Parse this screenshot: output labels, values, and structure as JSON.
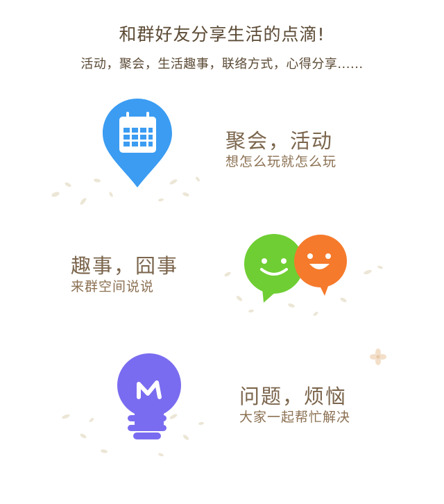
{
  "header": {
    "title": "和群好友分享生活的点滴!",
    "subtitle": "活动，聚会，生活趣事，联络方式，心得分享......"
  },
  "features": [
    {
      "title": "聚会，活动",
      "desc": "想怎么玩就怎么玩",
      "icon": "calendar-pin-icon",
      "color": "#3b9cf2"
    },
    {
      "title": "趣事，囧事",
      "desc": "来群空间说说",
      "icon": "smiley-chat-bubbles-icon",
      "colors": [
        "#6fce33",
        "#f57a2b"
      ]
    },
    {
      "title": "问题，烦恼",
      "desc": "大家一起帮忙解决",
      "icon": "lightbulb-icon",
      "color": "#7a6cf0"
    }
  ]
}
